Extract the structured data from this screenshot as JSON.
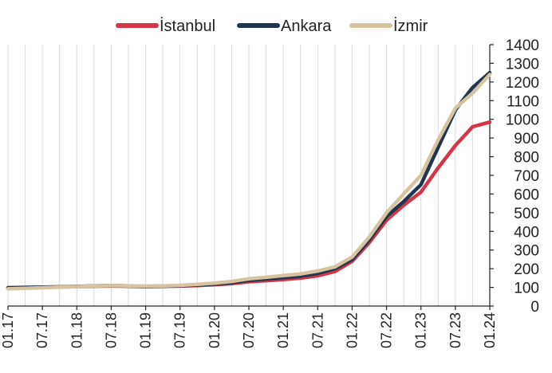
{
  "chart_data": {
    "type": "line",
    "title": "",
    "xlabel": "",
    "ylabel": "",
    "ylim": [
      0,
      1400
    ],
    "yticks": [
      0,
      100,
      200,
      300,
      400,
      500,
      600,
      700,
      800,
      900,
      1000,
      1100,
      1200,
      1300,
      1400
    ],
    "xticks": [
      "01.17",
      "07.17",
      "01.18",
      "07.18",
      "01.19",
      "07.19",
      "01.20",
      "07.20",
      "01.21",
      "07.21",
      "01.22",
      "07.22",
      "01.23",
      "07.23",
      "01.24"
    ],
    "grid": "vertical",
    "legend_position": "top-center",
    "x": [
      "2017-01",
      "2017-04",
      "2017-07",
      "2017-10",
      "2018-01",
      "2018-04",
      "2018-07",
      "2018-10",
      "2019-01",
      "2019-04",
      "2019-07",
      "2019-10",
      "2020-01",
      "2020-04",
      "2020-07",
      "2020-10",
      "2021-01",
      "2021-04",
      "2021-07",
      "2021-10",
      "2022-01",
      "2022-04",
      "2022-07",
      "2022-10",
      "2023-01",
      "2023-04",
      "2023-07",
      "2023-10",
      "2024-01"
    ],
    "series": [
      {
        "name": "İstanbul",
        "color": "#d63447",
        "values": [
          95,
          98,
          100,
          102,
          104,
          106,
          108,
          106,
          104,
          105,
          107,
          110,
          114,
          120,
          130,
          136,
          142,
          150,
          162,
          185,
          240,
          340,
          460,
          540,
          610,
          740,
          860,
          960,
          985
        ]
      },
      {
        "name": "Ankara",
        "color": "#1f3550",
        "values": [
          98,
          100,
          101,
          103,
          105,
          108,
          110,
          108,
          106,
          107,
          109,
          113,
          118,
          125,
          138,
          145,
          152,
          160,
          175,
          200,
          250,
          355,
          480,
          560,
          650,
          850,
          1050,
          1170,
          1250
        ]
      },
      {
        "name": "İzmir",
        "color": "#d8c3a0",
        "values": [
          92,
          95,
          98,
          101,
          104,
          107,
          110,
          108,
          107,
          108,
          111,
          116,
          123,
          132,
          146,
          154,
          163,
          172,
          188,
          210,
          262,
          370,
          500,
          600,
          700,
          890,
          1060,
          1140,
          1240
        ]
      }
    ]
  }
}
